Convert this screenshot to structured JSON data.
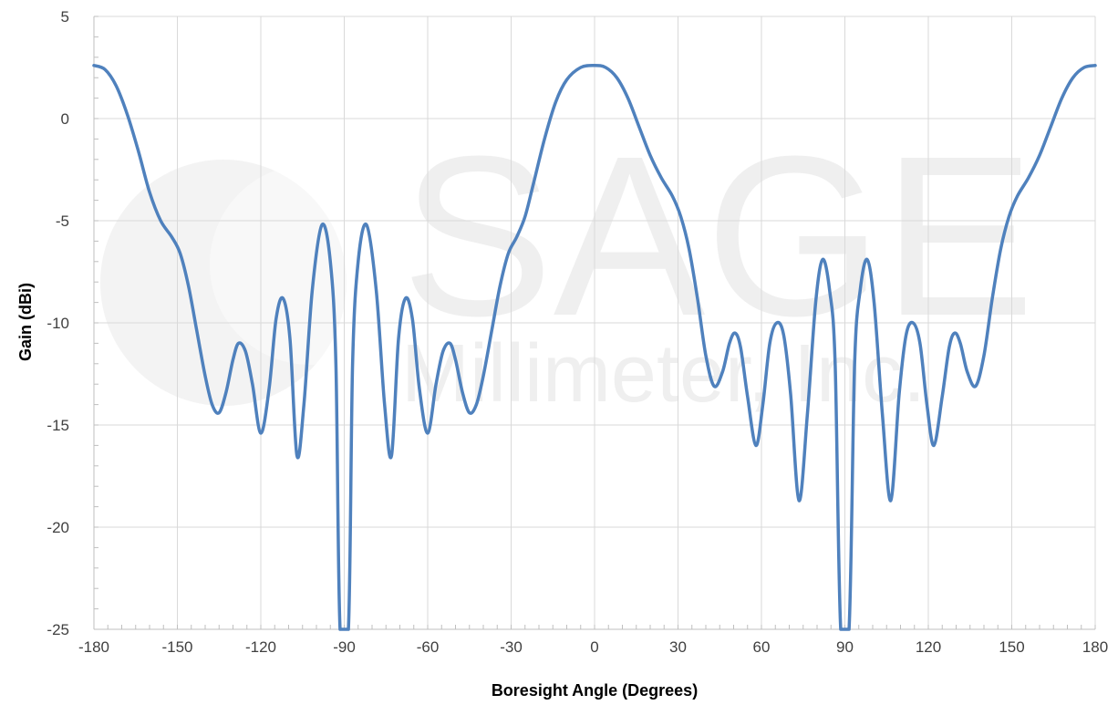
{
  "watermark": {
    "brand": "SAGE",
    "company": "Millimeter, Inc."
  },
  "chart_data": {
    "type": "line",
    "xlabel": "Boresight Angle (Degrees)",
    "ylabel": "Gain (dBi)",
    "xlim": [
      -180,
      180
    ],
    "ylim": [
      -25,
      5
    ],
    "x_ticks": [
      -180,
      -150,
      -120,
      -90,
      -60,
      -30,
      0,
      30,
      60,
      90,
      120,
      150,
      180
    ],
    "y_ticks": [
      5,
      0,
      -5,
      -10,
      -15,
      -20,
      -25
    ],
    "x_minor_step": 5,
    "y_minor_step": 1,
    "grid": true,
    "line_color": "#4f81bd",
    "series": [
      {
        "points": [
          [
            -180,
            2.6
          ],
          [
            -176,
            2.4
          ],
          [
            -172,
            1.6
          ],
          [
            -168,
            0.2
          ],
          [
            -164,
            -1.6
          ],
          [
            -160,
            -3.6
          ],
          [
            -156,
            -5.0
          ],
          [
            -152,
            -5.8
          ],
          [
            -149,
            -6.6
          ],
          [
            -146,
            -8.2
          ],
          [
            -143,
            -10.4
          ],
          [
            -140,
            -12.6
          ],
          [
            -137.5,
            -14.0
          ],
          [
            -135,
            -14.4
          ],
          [
            -132.5,
            -13.4
          ],
          [
            -130,
            -11.8
          ],
          [
            -128,
            -11.0
          ],
          [
            -125.5,
            -11.4
          ],
          [
            -123,
            -13.0
          ],
          [
            -120,
            -15.4
          ],
          [
            -117,
            -13.2
          ],
          [
            -114.5,
            -9.8
          ],
          [
            -112,
            -8.8
          ],
          [
            -109.5,
            -10.8
          ],
          [
            -107,
            -16.5
          ],
          [
            -104.5,
            -14.0
          ],
          [
            -101.5,
            -8.4
          ],
          [
            -98,
            -5.2
          ],
          [
            -95,
            -7.0
          ],
          [
            -93,
            -12.0
          ],
          [
            -91.5,
            -25
          ],
          [
            -88.5,
            -25
          ],
          [
            -87,
            -12.0
          ],
          [
            -85,
            -7.0
          ],
          [
            -82,
            -5.2
          ],
          [
            -78.5,
            -8.4
          ],
          [
            -75.5,
            -14.0
          ],
          [
            -73,
            -16.5
          ],
          [
            -70.5,
            -10.8
          ],
          [
            -68,
            -8.8
          ],
          [
            -65.5,
            -9.8
          ],
          [
            -63,
            -13.2
          ],
          [
            -60,
            -15.4
          ],
          [
            -57,
            -13.0
          ],
          [
            -54.5,
            -11.4
          ],
          [
            -52,
            -11.0
          ],
          [
            -50,
            -11.8
          ],
          [
            -47.5,
            -13.4
          ],
          [
            -45,
            -14.4
          ],
          [
            -42.5,
            -14.0
          ],
          [
            -40,
            -12.6
          ],
          [
            -37,
            -10.4
          ],
          [
            -34,
            -8.2
          ],
          [
            -31,
            -6.6
          ],
          [
            -28,
            -5.8
          ],
          [
            -25,
            -4.8
          ],
          [
            -22,
            -3.2
          ],
          [
            -18,
            -1.0
          ],
          [
            -14,
            0.8
          ],
          [
            -10,
            1.9
          ],
          [
            -5,
            2.5
          ],
          [
            0,
            2.6
          ],
          [
            4,
            2.5
          ],
          [
            8,
            2.0
          ],
          [
            12,
            1.0
          ],
          [
            16,
            -0.4
          ],
          [
            20,
            -1.8
          ],
          [
            24,
            -2.9
          ],
          [
            28,
            -3.8
          ],
          [
            31,
            -4.8
          ],
          [
            34,
            -6.4
          ],
          [
            37,
            -8.8
          ],
          [
            40,
            -11.6
          ],
          [
            43,
            -13.1
          ],
          [
            46,
            -12.4
          ],
          [
            48.5,
            -11.0
          ],
          [
            50.5,
            -10.5
          ],
          [
            52.5,
            -11.2
          ],
          [
            55,
            -13.6
          ],
          [
            58,
            -16.0
          ],
          [
            60.5,
            -14.0
          ],
          [
            63,
            -11.0
          ],
          [
            65.5,
            -10.0
          ],
          [
            68,
            -10.6
          ],
          [
            70.5,
            -13.5
          ],
          [
            73.5,
            -18.7
          ],
          [
            76.5,
            -14.5
          ],
          [
            79.5,
            -9.0
          ],
          [
            82,
            -6.9
          ],
          [
            84.5,
            -8.4
          ],
          [
            86.5,
            -12.0
          ],
          [
            88.5,
            -25
          ],
          [
            91.5,
            -25
          ],
          [
            93.5,
            -12.0
          ],
          [
            95.5,
            -8.4
          ],
          [
            98,
            -6.9
          ],
          [
            100.5,
            -9.0
          ],
          [
            103.5,
            -14.5
          ],
          [
            106.5,
            -18.7
          ],
          [
            109.5,
            -13.5
          ],
          [
            112,
            -10.6
          ],
          [
            114.5,
            -10.0
          ],
          [
            117,
            -11.0
          ],
          [
            119.5,
            -14.0
          ],
          [
            122,
            -16.0
          ],
          [
            125,
            -13.6
          ],
          [
            127.5,
            -11.2
          ],
          [
            129.5,
            -10.5
          ],
          [
            131.5,
            -11.0
          ],
          [
            134,
            -12.4
          ],
          [
            137,
            -13.1
          ],
          [
            140,
            -11.6
          ],
          [
            143,
            -8.8
          ],
          [
            146,
            -6.4
          ],
          [
            149,
            -4.8
          ],
          [
            152,
            -3.8
          ],
          [
            156,
            -2.9
          ],
          [
            160,
            -1.8
          ],
          [
            164,
            -0.4
          ],
          [
            168,
            1.0
          ],
          [
            172,
            2.0
          ],
          [
            176,
            2.5
          ],
          [
            180,
            2.6
          ]
        ]
      }
    ]
  }
}
